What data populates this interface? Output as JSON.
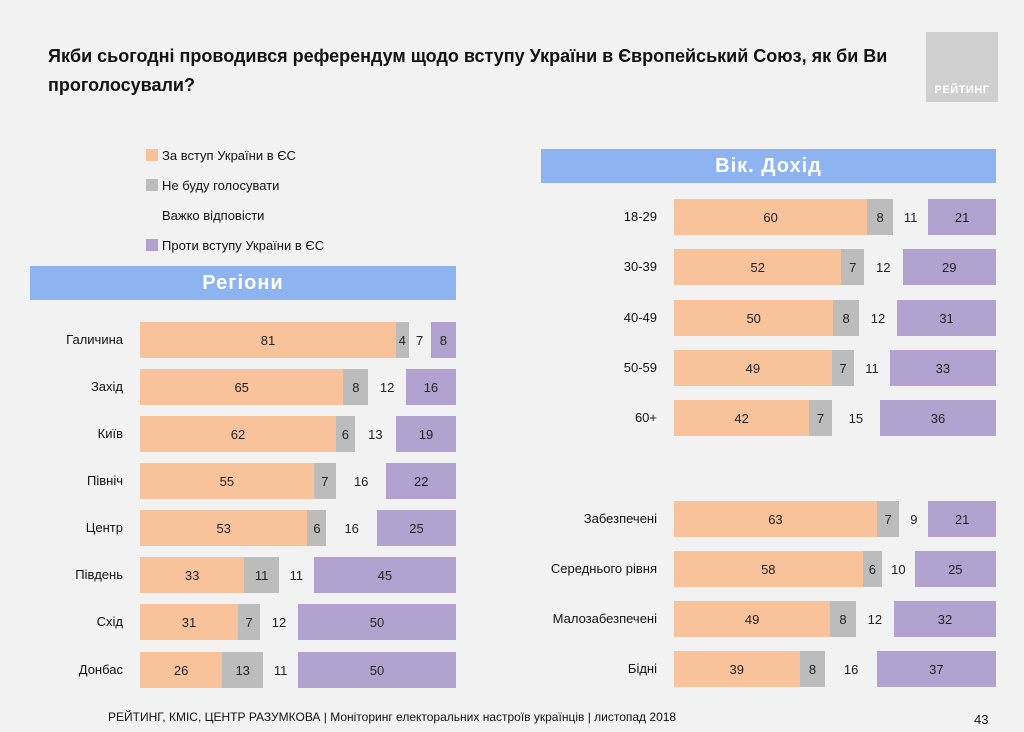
{
  "title": "Якби сьогодні проводився референдум щодо вступу України в Європейський Союз, як би Ви проголосували?",
  "logo_text": "РЕЙТИНГ",
  "colors": {
    "for": "#f8c39b",
    "notvote": "#bcbcbc",
    "hard": "#f2f2f2",
    "against": "#b2a2cf",
    "banner": "#8db4f0"
  },
  "legend": [
    {
      "label": "За вступ України в ЄС",
      "color": "#f8c39b"
    },
    {
      "label": "Не буду голосувати",
      "color": "#bcbcbc"
    },
    {
      "label": "Важко відповісти",
      "color": "#f2f2f2"
    },
    {
      "label": "Проти вступу України в ЄС",
      "color": "#b2a2cf"
    }
  ],
  "banners": {
    "regions": "Регіони",
    "age_income": "Вік. Дохід"
  },
  "chart_data": [
    {
      "type": "bar",
      "stacked": true,
      "orientation": "horizontal",
      "series_names": [
        "За вступ України в ЄС",
        "Не буду голосувати",
        "Важко відповісти",
        "Проти вступу України в ЄС"
      ],
      "categories": [
        "Галичина",
        "Захід",
        "Київ",
        "Північ",
        "Центр",
        "Південь",
        "Схід",
        "Донбас"
      ],
      "values": [
        [
          81,
          4,
          7,
          8
        ],
        [
          65,
          8,
          12,
          16
        ],
        [
          62,
          6,
          13,
          19
        ],
        [
          55,
          7,
          16,
          22
        ],
        [
          53,
          6,
          16,
          25
        ],
        [
          33,
          11,
          11,
          45
        ],
        [
          31,
          7,
          12,
          50
        ],
        [
          26,
          13,
          11,
          50
        ]
      ]
    },
    {
      "type": "bar",
      "stacked": true,
      "orientation": "horizontal",
      "series_names": [
        "За вступ України в ЄС",
        "Не буду голосувати",
        "Важко відповісти",
        "Проти вступу України в ЄС"
      ],
      "categories": [
        "18-29",
        "30-39",
        "40-49",
        "50-59",
        "60+"
      ],
      "values": [
        [
          60,
          8,
          11,
          21
        ],
        [
          52,
          7,
          12,
          29
        ],
        [
          50,
          8,
          12,
          31
        ],
        [
          49,
          7,
          11,
          33
        ],
        [
          42,
          7,
          15,
          36
        ]
      ]
    },
    {
      "type": "bar",
      "stacked": true,
      "orientation": "horizontal",
      "series_names": [
        "За вступ України в ЄС",
        "Не буду голосувати",
        "Важко відповісти",
        "Проти вступу України в ЄС"
      ],
      "categories": [
        "Забезпечені",
        "Середнього рівня",
        "Малозабезпечені",
        "Бідні"
      ],
      "values": [
        [
          63,
          7,
          9,
          21
        ],
        [
          58,
          6,
          10,
          25
        ],
        [
          49,
          8,
          12,
          32
        ],
        [
          39,
          8,
          16,
          37
        ]
      ]
    }
  ],
  "footer": "РЕЙТИНГ, КМІС, ЦЕНТР РАЗУМКОВА |  Моніторинг електоральних настроїв українців | листопад 2018",
  "page_number": "43"
}
